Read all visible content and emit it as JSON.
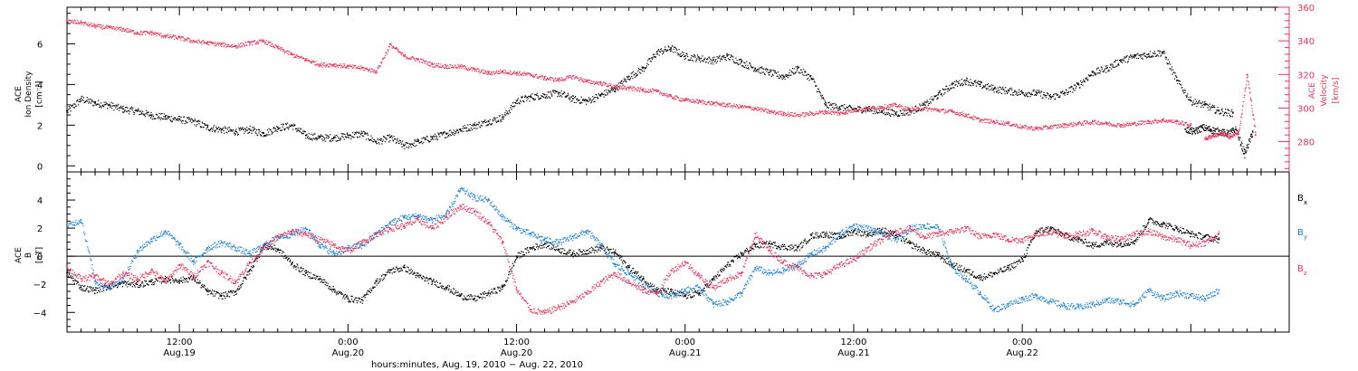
{
  "colors": {
    "black": "#000000",
    "red": "#e8325a",
    "blue": "#1a7fd6"
  },
  "chart_data": [
    {
      "type": "scatter",
      "panel": "top",
      "ylabel_lines": [
        "ACE",
        "Ion Density",
        "[cm⁻³]"
      ],
      "right_ylabel_lines": [
        "ACE",
        "Velocity",
        "[km/s]"
      ],
      "ylim": [
        -0.3,
        7.8
      ],
      "ytick_values": [
        0,
        2,
        4,
        6
      ],
      "ytick_labels": [
        "0",
        "2",
        "4",
        "6"
      ],
      "right_ylim": [
        262,
        360
      ],
      "right_ytick_values": [
        280,
        300,
        320,
        340,
        360
      ],
      "right_ytick_labels": [
        "280",
        "300",
        "320",
        "340",
        "360"
      ],
      "xlim": [
        4,
        91
      ],
      "series": [
        {
          "color_key": "black",
          "axis": "left",
          "x": [
            4,
            5,
            6,
            7,
            8,
            9,
            10,
            11,
            12,
            13,
            14,
            15,
            16,
            17,
            18,
            19,
            20,
            21,
            22,
            23,
            24,
            25,
            26,
            27,
            28,
            29,
            30,
            31,
            32,
            33,
            34,
            35,
            36,
            37,
            38,
            39,
            40,
            41,
            42,
            43,
            44,
            45,
            46,
            47,
            48,
            49,
            50,
            51,
            52,
            53,
            54,
            55,
            56,
            57,
            58,
            59,
            60,
            61,
            62,
            63,
            64,
            65,
            66,
            67,
            68,
            69,
            70,
            71,
            72,
            73,
            74,
            75,
            76,
            77,
            78,
            79,
            80,
            81,
            82,
            83,
            84,
            85,
            86,
            87
          ],
          "y": [
            2.7,
            3.3,
            3.1,
            3.0,
            2.8,
            2.7,
            2.5,
            2.4,
            2.3,
            2.2,
            1.9,
            1.8,
            1.7,
            1.8,
            1.6,
            1.9,
            2.0,
            1.5,
            1.4,
            1.4,
            1.5,
            1.6,
            1.2,
            1.4,
            1.0,
            1.2,
            1.4,
            1.6,
            1.8,
            2.0,
            2.2,
            2.4,
            3.2,
            3.4,
            3.5,
            3.6,
            3.3,
            3.2,
            3.5,
            3.8,
            4.4,
            4.8,
            5.6,
            5.8,
            5.4,
            5.3,
            5.2,
            5.4,
            5.1,
            4.8,
            4.6,
            4.4,
            4.8,
            4.3,
            3.0,
            2.9,
            2.8,
            2.8,
            2.7,
            2.6,
            2.7,
            3.0,
            3.5,
            4.0,
            4.2,
            4.0,
            3.8,
            3.7,
            3.6,
            3.6,
            3.4,
            3.6,
            4.0,
            4.6,
            4.8,
            5.2,
            5.4,
            5.5,
            5.6,
            4.2,
            3.2,
            3.0,
            2.7,
            2.6
          ]
        },
        {
          "color_key": "black",
          "axis": "left",
          "x": [
            83.6,
            84.2,
            84.8,
            85.4,
            86.0,
            86.6,
            87.2,
            87.8,
            88.4
          ],
          "y": [
            1.8,
            1.7,
            1.9,
            1.8,
            1.7,
            1.6,
            1.8,
            0.6,
            1.7
          ]
        },
        {
          "color_key": "red",
          "axis": "right",
          "x": [
            4,
            5,
            6,
            7,
            8,
            9,
            10,
            11,
            12,
            13,
            14,
            15,
            16,
            17,
            18,
            19,
            20,
            21,
            22,
            23,
            24,
            25,
            26,
            27,
            28,
            29,
            30,
            31,
            32,
            33,
            34,
            35,
            36,
            37,
            38,
            39,
            40,
            41,
            42,
            43,
            44,
            45,
            46,
            47,
            48,
            49,
            50,
            51,
            52,
            53,
            54,
            55,
            56,
            57,
            58,
            59,
            60,
            61,
            62,
            63,
            64,
            65,
            66,
            67,
            68,
            69,
            70,
            71,
            72,
            73,
            74,
            75,
            76,
            77,
            78,
            79,
            80,
            81,
            82,
            83,
            84
          ],
          "y": [
            352,
            351,
            349,
            348,
            347,
            345,
            345,
            343,
            342,
            340,
            339,
            338,
            337,
            339,
            340,
            336,
            332,
            329,
            326,
            326,
            325,
            324,
            322,
            338,
            331,
            329,
            326,
            325,
            325,
            323,
            321,
            322,
            321,
            320,
            318,
            317,
            319,
            316,
            315,
            313,
            312,
            311,
            310,
            307,
            305,
            304,
            303,
            302,
            301,
            300,
            298,
            297,
            296,
            297,
            298,
            297,
            299,
            300,
            301,
            302,
            299,
            300,
            299,
            298,
            296,
            293,
            292,
            291,
            289,
            288,
            289,
            290,
            291,
            292,
            291,
            290,
            291,
            292,
            293,
            292,
            290
          ]
        },
        {
          "color_key": "red",
          "axis": "right",
          "x": [
            85.0,
            85.6,
            86.2,
            86.8,
            87.4,
            88.0,
            88.6
          ],
          "y": [
            282,
            284,
            285,
            283,
            286,
            320,
            284
          ]
        }
      ]
    },
    {
      "type": "scatter",
      "panel": "bottom",
      "ylabel_lines": [
        "ACE",
        "B",
        "[nT]"
      ],
      "ylim": [
        -5.4,
        6.0
      ],
      "ytick_values": [
        -4,
        -2,
        0,
        2,
        4
      ],
      "ytick_labels": [
        "−4",
        "−2",
        "0",
        "2",
        "4"
      ],
      "xlim": [
        4,
        91
      ],
      "zero_line": true,
      "x_ticks": [
        {
          "x": 12,
          "time_label": "12:00",
          "date_label": "Aug.19"
        },
        {
          "x": 24,
          "time_label": "0:00",
          "date_label": "Aug.20"
        },
        {
          "x": 36,
          "time_label": "12:00",
          "date_label": "Aug.20"
        },
        {
          "x": 48,
          "time_label": "0:00",
          "date_label": "Aug.21"
        },
        {
          "x": 60,
          "time_label": "12:00",
          "date_label": "Aug.21"
        },
        {
          "x": 72,
          "time_label": "0:00",
          "date_label": "Aug.22"
        }
      ],
      "xlabel": "hours:minutes, Aug. 19, 2010 − Aug. 22, 2010",
      "legend_placement": "right",
      "series": [
        {
          "name": "Bx",
          "name_main": "B",
          "name_sub": "x",
          "color_key": "black",
          "x": [
            4,
            5,
            6,
            7,
            8,
            9,
            10,
            11,
            12,
            13,
            14,
            15,
            16,
            17,
            18,
            19,
            20,
            21,
            22,
            23,
            24,
            25,
            26,
            27,
            28,
            29,
            30,
            31,
            32,
            33,
            34,
            35,
            36,
            37,
            38,
            39,
            40,
            41,
            42,
            43,
            44,
            45,
            46,
            47,
            48,
            49,
            50,
            51,
            52,
            53,
            54,
            55,
            56,
            57,
            58,
            59,
            60,
            61,
            62,
            63,
            64,
            65,
            66,
            67,
            68,
            69,
            70,
            71,
            72,
            73,
            74,
            75,
            76,
            77,
            78,
            79,
            80,
            81,
            82,
            83,
            84,
            85,
            86
          ],
          "y": [
            -1.2,
            -2.2,
            -2.4,
            -2.1,
            -1.9,
            -2.0,
            -1.8,
            -1.6,
            -1.7,
            -1.5,
            -2.5,
            -2.8,
            -2.5,
            -1.0,
            0.8,
            0.5,
            -0.5,
            -1.2,
            -1.6,
            -2.4,
            -3.0,
            -3.1,
            -1.8,
            -1.0,
            -0.8,
            -1.4,
            -1.8,
            -2.2,
            -2.8,
            -3.0,
            -2.6,
            -2.2,
            0.0,
            0.6,
            0.9,
            0.5,
            0.2,
            0.4,
            0.6,
            0.3,
            -0.8,
            -1.6,
            -2.4,
            -2.5,
            -2.8,
            -2.6,
            -1.6,
            -0.6,
            0.2,
            0.8,
            0.9,
            0.7,
            0.6,
            1.5,
            1.6,
            1.4,
            1.8,
            1.6,
            1.9,
            1.5,
            0.9,
            0.4,
            0.1,
            -0.6,
            -1.0,
            -1.5,
            -1.2,
            -0.8,
            -0.2,
            1.8,
            2.0,
            1.5,
            1.2,
            0.8,
            1.0,
            0.9,
            1.1,
            2.6,
            2.3,
            2.0,
            1.6,
            1.4,
            1.2
          ]
        },
        {
          "name": "By",
          "name_main": "B",
          "name_sub": "y",
          "color_key": "blue",
          "x": [
            4,
            5,
            6,
            7,
            8,
            9,
            10,
            11,
            12,
            13,
            14,
            15,
            16,
            17,
            18,
            19,
            20,
            21,
            22,
            23,
            24,
            25,
            26,
            27,
            28,
            29,
            30,
            31,
            32,
            33,
            34,
            35,
            36,
            37,
            38,
            39,
            40,
            41,
            42,
            43,
            44,
            45,
            46,
            47,
            48,
            49,
            50,
            51,
            52,
            53,
            54,
            55,
            56,
            57,
            58,
            59,
            60,
            61,
            62,
            63,
            64,
            65,
            66,
            67,
            68,
            69,
            70,
            71,
            72,
            73,
            74,
            75,
            76,
            77,
            78,
            79,
            80,
            81,
            82,
            83,
            84,
            85,
            86
          ],
          "y": [
            2.2,
            2.6,
            -1.8,
            -2.2,
            -1.6,
            0.4,
            1.2,
            1.8,
            0.8,
            -0.4,
            0.6,
            1.0,
            0.6,
            0.2,
            0.8,
            1.4,
            1.6,
            2.0,
            0.8,
            0.2,
            0.6,
            0.8,
            1.6,
            2.4,
            2.8,
            2.9,
            2.6,
            3.0,
            4.8,
            4.2,
            4.0,
            2.8,
            2.0,
            1.6,
            1.2,
            1.0,
            1.4,
            1.8,
            0.8,
            -0.6,
            -1.2,
            -2.0,
            -2.6,
            -2.8,
            -2.4,
            -2.2,
            -3.4,
            -3.2,
            -2.6,
            -0.8,
            -1.2,
            -1.0,
            -0.6,
            0.2,
            0.6,
            1.6,
            2.2,
            2.0,
            1.6,
            1.2,
            2.0,
            2.2,
            2.1,
            -0.8,
            -1.6,
            -2.6,
            -3.8,
            -3.4,
            -3.0,
            -2.8,
            -3.2,
            -3.5,
            -3.6,
            -3.4,
            -3.1,
            -3.2,
            -3.4,
            -2.4,
            -3.0,
            -2.6,
            -2.8,
            -3.0,
            -2.4
          ]
        },
        {
          "name": "Bz",
          "name_main": "B",
          "name_sub": "z",
          "color_key": "red",
          "x": [
            4,
            5,
            6,
            7,
            8,
            9,
            10,
            11,
            12,
            13,
            14,
            15,
            16,
            17,
            18,
            19,
            20,
            21,
            22,
            23,
            24,
            25,
            26,
            27,
            28,
            29,
            30,
            31,
            32,
            33,
            34,
            35,
            36,
            37,
            38,
            39,
            40,
            41,
            42,
            43,
            44,
            45,
            46,
            47,
            48,
            49,
            50,
            51,
            52,
            53,
            54,
            55,
            56,
            57,
            58,
            59,
            60,
            61,
            62,
            63,
            64,
            65,
            66,
            67,
            68,
            69,
            70,
            71,
            72,
            73,
            74,
            75,
            76,
            77,
            78,
            79,
            80,
            81,
            82,
            83,
            84,
            85,
            86
          ],
          "y": [
            -0.8,
            -1.6,
            -1.4,
            -2.0,
            -1.2,
            -1.6,
            -1.0,
            -1.8,
            -0.6,
            -1.4,
            -0.4,
            -1.2,
            -1.8,
            -0.4,
            0.6,
            1.4,
            1.8,
            1.6,
            1.2,
            0.8,
            0.4,
            1.0,
            1.6,
            2.0,
            2.2,
            2.6,
            2.0,
            2.8,
            3.6,
            3.2,
            2.4,
            1.0,
            -2.4,
            -3.8,
            -4.0,
            -3.6,
            -3.2,
            -2.6,
            -1.8,
            -1.2,
            -1.8,
            -2.4,
            -2.6,
            -1.0,
            -0.4,
            -1.4,
            -2.2,
            -1.6,
            -1.2,
            1.6,
            0.4,
            -0.4,
            -0.8,
            -1.4,
            -1.2,
            -0.6,
            -0.2,
            0.6,
            1.2,
            1.8,
            2.0,
            1.4,
            1.6,
            1.8,
            2.0,
            1.4,
            1.6,
            1.2,
            1.2,
            1.6,
            1.8,
            1.4,
            1.6,
            1.8,
            1.4,
            1.2,
            1.6,
            1.8,
            1.4,
            1.2,
            0.8,
            1.0,
            1.6
          ]
        }
      ]
    }
  ]
}
